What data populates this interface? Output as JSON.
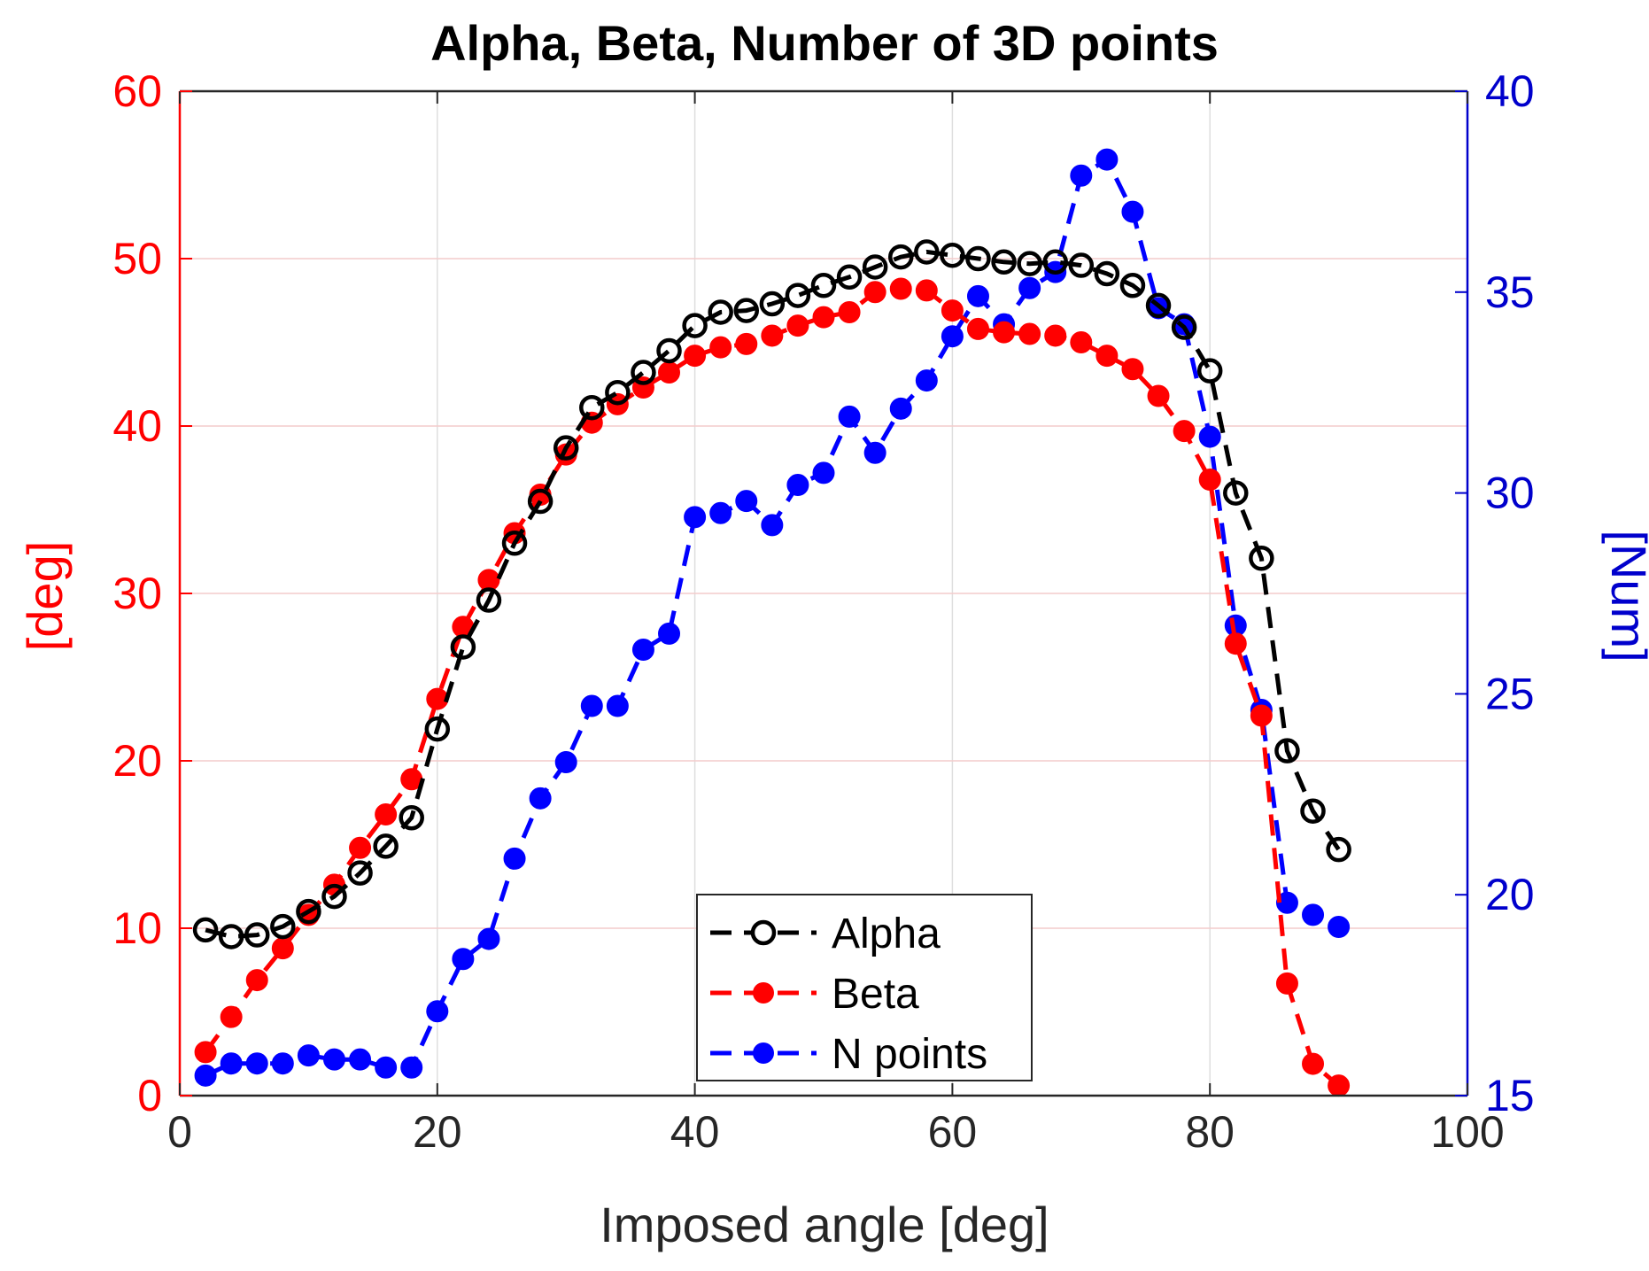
{
  "chart_data": {
    "type": "line",
    "title": "Alpha, Beta, Number of 3D points",
    "xlabel": "Imposed angle [deg]",
    "ylabel_left": "[deg]",
    "ylabel_right": "[Num]",
    "xlim": [
      0,
      100
    ],
    "ylim_left": [
      0,
      60
    ],
    "ylim_right": [
      15,
      40
    ],
    "x_ticks": [
      "0",
      "20",
      "40",
      "60",
      "80",
      "100"
    ],
    "y_left_ticks": [
      "0",
      "10",
      "20",
      "30",
      "40",
      "50",
      "60"
    ],
    "y_right_ticks": [
      "15",
      "20",
      "25",
      "30",
      "35",
      "40"
    ],
    "grid": true,
    "legend_position": "bottom-center",
    "x": [
      2,
      4,
      6,
      8,
      10,
      12,
      14,
      16,
      18,
      20,
      22,
      24,
      26,
      28,
      30,
      32,
      34,
      36,
      38,
      40,
      42,
      44,
      46,
      48,
      50,
      52,
      54,
      56,
      58,
      60,
      62,
      64,
      66,
      68,
      70,
      72,
      74,
      76,
      78,
      80,
      82,
      84,
      86,
      88,
      90
    ],
    "series": [
      {
        "name": "Alpha",
        "axis": "left",
        "color": "#000000",
        "marker": "open-circle",
        "values": [
          9.9,
          9.5,
          9.6,
          10.1,
          11.0,
          11.9,
          13.3,
          14.9,
          16.6,
          21.9,
          26.8,
          29.6,
          33.0,
          35.5,
          38.7,
          41.1,
          42.0,
          43.2,
          44.5,
          46.0,
          46.8,
          46.9,
          47.3,
          47.8,
          48.4,
          48.9,
          49.5,
          50.1,
          50.4,
          50.2,
          50.0,
          49.8,
          49.7,
          49.8,
          49.6,
          49.1,
          48.4,
          47.2,
          45.9,
          43.3,
          36.0,
          32.1,
          20.6,
          17.0,
          14.7
        ]
      },
      {
        "name": "Beta",
        "axis": "left",
        "color": "#ff0000",
        "marker": "filled-circle",
        "values": [
          2.6,
          4.7,
          6.9,
          8.8,
          10.8,
          12.6,
          14.8,
          16.8,
          18.9,
          23.7,
          28.0,
          30.8,
          33.6,
          35.9,
          38.3,
          40.2,
          41.3,
          42.3,
          43.2,
          44.2,
          44.7,
          44.9,
          45.4,
          46.0,
          46.5,
          46.8,
          48.0,
          48.2,
          48.1,
          46.9,
          45.8,
          45.6,
          45.5,
          45.4,
          45.0,
          44.2,
          43.4,
          41.8,
          39.7,
          36.8,
          27.0,
          22.7,
          6.7,
          1.9,
          0.6
        ]
      },
      {
        "name": "N points",
        "axis": "right",
        "color": "#0000ff",
        "marker": "filled-circle",
        "values": [
          15.5,
          15.8,
          15.8,
          15.8,
          16.0,
          15.9,
          15.9,
          15.7,
          15.7,
          17.1,
          18.4,
          18.9,
          20.9,
          22.4,
          23.3,
          24.7,
          24.7,
          26.1,
          26.5,
          29.4,
          29.5,
          29.8,
          29.2,
          30.2,
          30.5,
          31.9,
          31.0,
          32.1,
          32.8,
          33.9,
          34.9,
          34.2,
          35.1,
          35.5,
          37.9,
          38.3,
          37.0,
          34.6,
          34.2,
          31.4,
          26.7,
          24.6,
          19.8,
          19.5,
          19.2
        ]
      }
    ]
  }
}
